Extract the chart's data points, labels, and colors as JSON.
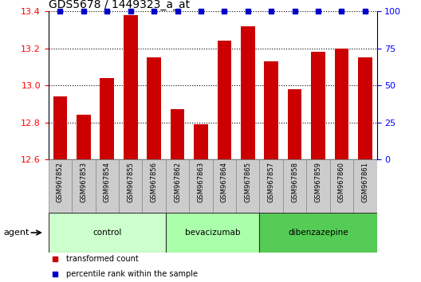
{
  "title": "GDS5678 / 1449323_a_at",
  "samples": [
    "GSM967852",
    "GSM967853",
    "GSM967854",
    "GSM967855",
    "GSM967856",
    "GSM967862",
    "GSM967863",
    "GSM967864",
    "GSM967865",
    "GSM967857",
    "GSM967858",
    "GSM967859",
    "GSM967860",
    "GSM967861"
  ],
  "transformed_counts": [
    12.94,
    12.84,
    13.04,
    13.38,
    13.15,
    12.87,
    12.79,
    13.24,
    13.32,
    13.13,
    12.98,
    13.18,
    13.2,
    13.15
  ],
  "percentile_ranks": [
    100,
    100,
    100,
    100,
    100,
    100,
    100,
    100,
    100,
    100,
    100,
    100,
    100,
    100
  ],
  "groups": [
    {
      "name": "control",
      "start": 0,
      "end": 5,
      "color": "#ccffcc"
    },
    {
      "name": "bevacizumab",
      "start": 5,
      "end": 9,
      "color": "#aaffaa"
    },
    {
      "name": "dibenzazepine",
      "start": 9,
      "end": 14,
      "color": "#55cc55"
    }
  ],
  "ylim_left": [
    12.6,
    13.4
  ],
  "ylim_right": [
    0,
    100
  ],
  "bar_color": "#cc0000",
  "percentile_color": "#0000cc",
  "yticks_left": [
    12.6,
    12.8,
    13.0,
    13.2,
    13.4
  ],
  "yticks_right": [
    0,
    25,
    50,
    75,
    100
  ],
  "legend_items": [
    {
      "label": "transformed count",
      "color": "#cc0000"
    },
    {
      "label": "percentile rank within the sample",
      "color": "#0000cc"
    }
  ],
  "agent_label": "agent",
  "fig_width": 5.28,
  "fig_height": 3.54,
  "dpi": 100
}
